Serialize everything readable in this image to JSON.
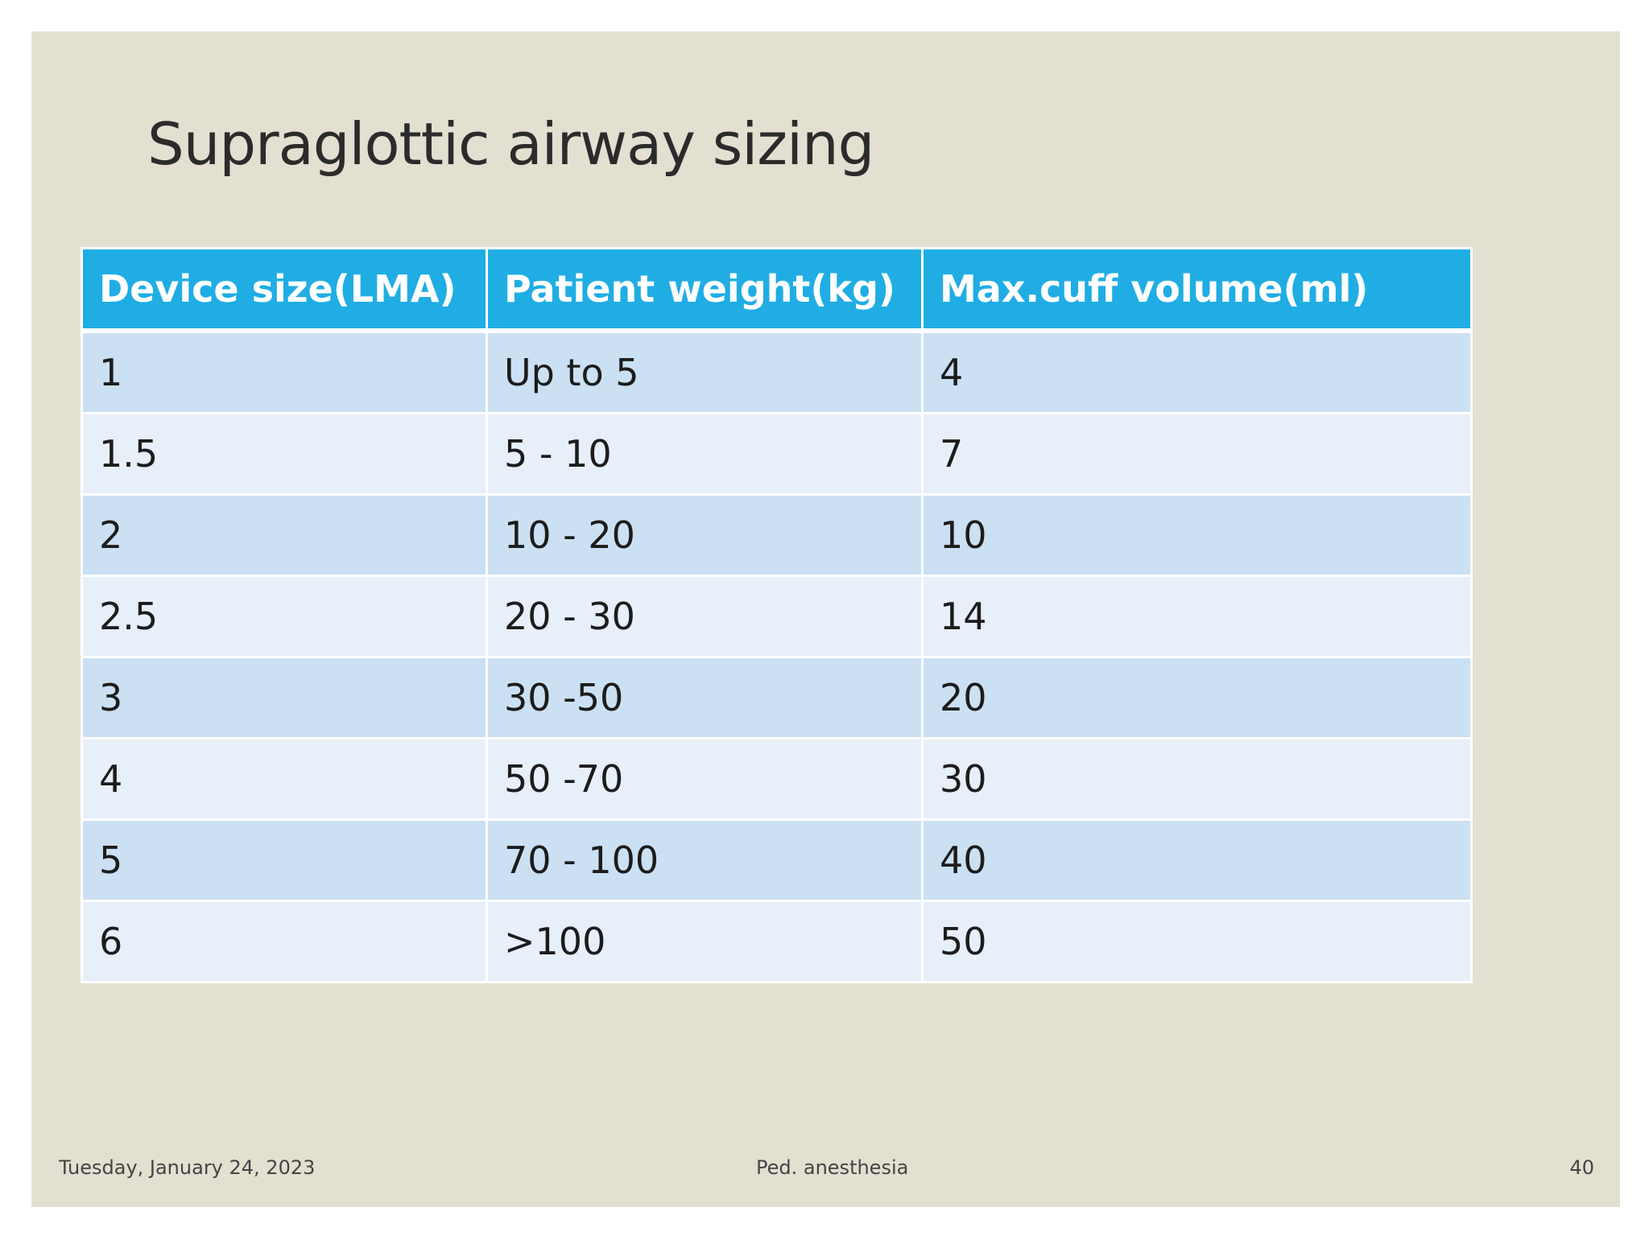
{
  "slide": {
    "title": "Supraglottic airway sizing",
    "table": {
      "headers": [
        "Device size(LMA)",
        "Patient weight(kg)",
        "Max.cuff volume(ml)"
      ],
      "rows": [
        [
          "1",
          "Up to 5",
          "4"
        ],
        [
          "1.5",
          "5 - 10",
          "7"
        ],
        [
          "2",
          "10 - 20",
          "10"
        ],
        [
          "2.5",
          "20 - 30",
          "14"
        ],
        [
          "3",
          "30 -50",
          "20"
        ],
        [
          "4",
          "50 -70",
          "30"
        ],
        [
          "5",
          "70 - 100",
          "40"
        ],
        [
          "6",
          ">100",
          "50"
        ]
      ]
    },
    "footer": {
      "date": "Tuesday, January 24, 2023",
      "center": "Ped. anesthesia",
      "page_number": "40"
    }
  },
  "colors": {
    "slide_background": "#e3dfd1",
    "header_fill": "#1fade4",
    "row_dark": "#cbe0f3",
    "row_light": "#e7eff9"
  }
}
